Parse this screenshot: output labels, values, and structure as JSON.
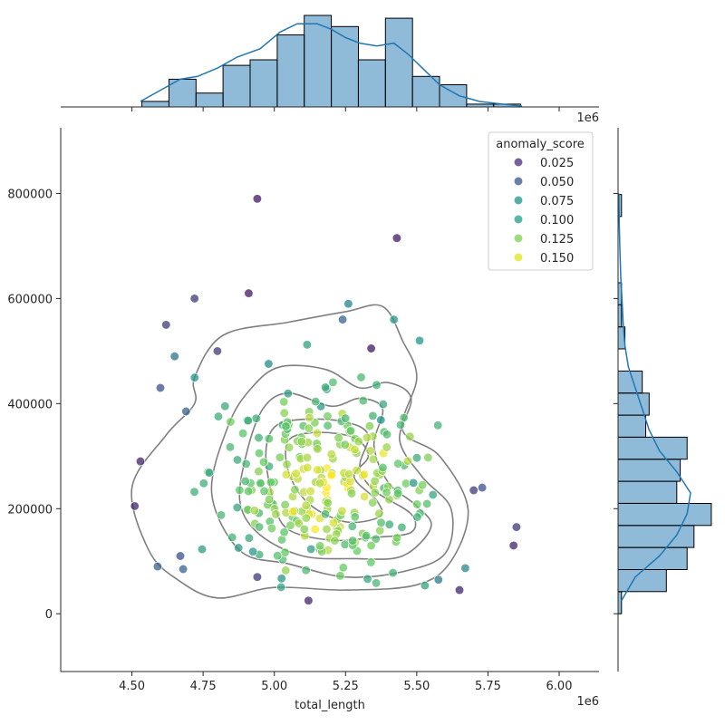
{
  "chart_data": {
    "type": "scatter",
    "title": "",
    "xlabel": "total_length",
    "ylabel": "",
    "x_offset_label": "1e6",
    "top_offset_label": "1e6",
    "xlim": [
      4.25,
      6.14
    ],
    "ylim": [
      -110000,
      925000
    ],
    "x_ticks": [
      4.5,
      4.75,
      5.0,
      5.25,
      5.5,
      5.75,
      6.0
    ],
    "x_tick_labels": [
      "4.50",
      "4.75",
      "5.00",
      "5.25",
      "5.50",
      "5.75",
      "6.00"
    ],
    "y_ticks": [
      0,
      200000,
      400000,
      600000,
      800000
    ],
    "y_tick_labels": [
      "0",
      "200000",
      "400000",
      "600000",
      "800000"
    ],
    "grid": false,
    "legend": {
      "title": "anomaly_score",
      "placement": "top-right",
      "entries": [
        {
          "label": "0.025",
          "color": "#472d7b"
        },
        {
          "label": "0.050",
          "color": "#3b528b"
        },
        {
          "label": "0.075",
          "color": "#21918c"
        },
        {
          "label": "0.100",
          "color": "#1fa187"
        },
        {
          "label": "0.125",
          "color": "#7ad151"
        },
        {
          "label": "0.150",
          "color": "#e2e418"
        }
      ]
    },
    "colormap": [
      "#440154",
      "#3b528b",
      "#21918c",
      "#5ec962",
      "#fde725"
    ],
    "point_color_range": [
      0.015,
      0.16
    ],
    "outlier_points": [
      {
        "x": 4.94,
        "y": 790000,
        "score": 0.025
      },
      {
        "x": 5.43,
        "y": 715000,
        "score": 0.025
      },
      {
        "x": 4.91,
        "y": 610000,
        "score": 0.025
      },
      {
        "x": 4.72,
        "y": 600000,
        "score": 0.04
      },
      {
        "x": 5.26,
        "y": 590000,
        "score": 0.08
      },
      {
        "x": 4.62,
        "y": 550000,
        "score": 0.04
      },
      {
        "x": 5.24,
        "y": 560000,
        "score": 0.06
      },
      {
        "x": 5.42,
        "y": 560000,
        "score": 0.09
      },
      {
        "x": 5.51,
        "y": 520000,
        "score": 0.09
      },
      {
        "x": 5.34,
        "y": 505000,
        "score": 0.025
      },
      {
        "x": 4.8,
        "y": 500000,
        "score": 0.04
      },
      {
        "x": 4.65,
        "y": 490000,
        "score": 0.07
      },
      {
        "x": 4.53,
        "y": 290000,
        "score": 0.03
      },
      {
        "x": 4.51,
        "y": 205000,
        "score": 0.03
      },
      {
        "x": 4.59,
        "y": 90000,
        "score": 0.06
      },
      {
        "x": 5.12,
        "y": 25000,
        "score": 0.03
      },
      {
        "x": 5.65,
        "y": 45000,
        "score": 0.03
      },
      {
        "x": 5.7,
        "y": 235000,
        "score": 0.04
      },
      {
        "x": 5.73,
        "y": 240000,
        "score": 0.05
      },
      {
        "x": 5.84,
        "y": 130000,
        "score": 0.03
      },
      {
        "x": 5.85,
        "y": 165000,
        "score": 0.04
      },
      {
        "x": 4.6,
        "y": 430000,
        "score": 0.05
      },
      {
        "x": 4.69,
        "y": 385000,
        "score": 0.06
      },
      {
        "x": 4.94,
        "y": 70000,
        "score": 0.04
      },
      {
        "x": 4.67,
        "y": 110000,
        "score": 0.05
      },
      {
        "x": 4.68,
        "y": 85000,
        "score": 0.06
      }
    ],
    "contour_levels": [
      [
        [
          4.8,
          30000
        ],
        [
          5.0,
          50000
        ],
        [
          5.25,
          45000
        ],
        [
          5.5,
          55000
        ],
        [
          5.62,
          100000
        ],
        [
          5.68,
          200000
        ],
        [
          5.58,
          300000
        ],
        [
          5.45,
          350000
        ],
        [
          5.5,
          450000
        ],
        [
          5.45,
          520000
        ],
        [
          5.38,
          585000
        ],
        [
          5.25,
          575000
        ],
        [
          5.05,
          555000
        ],
        [
          4.82,
          530000
        ],
        [
          4.72,
          450000
        ],
        [
          4.72,
          400000
        ],
        [
          4.62,
          340000
        ],
        [
          4.5,
          240000
        ],
        [
          4.56,
          120000
        ],
        [
          4.66,
          65000
        ]
      ],
      [
        [
          4.88,
          120000
        ],
        [
          5.05,
          95000
        ],
        [
          5.25,
          70000
        ],
        [
          5.45,
          80000
        ],
        [
          5.6,
          115000
        ],
        [
          5.62,
          200000
        ],
        [
          5.52,
          260000
        ],
        [
          5.44,
          330000
        ],
        [
          5.48,
          410000
        ],
        [
          5.4,
          440000
        ],
        [
          5.3,
          430000
        ],
        [
          5.18,
          465000
        ],
        [
          5.02,
          470000
        ],
        [
          4.92,
          430000
        ],
        [
          4.84,
          360000
        ],
        [
          4.78,
          230000
        ]
      ],
      [
        [
          4.95,
          150000
        ],
        [
          5.1,
          110000
        ],
        [
          5.28,
          105000
        ],
        [
          5.45,
          110000
        ],
        [
          5.55,
          165000
        ],
        [
          5.5,
          205000
        ],
        [
          5.4,
          250000
        ],
        [
          5.35,
          320000
        ],
        [
          5.38,
          390000
        ],
        [
          5.3,
          410000
        ],
        [
          5.2,
          395000
        ],
        [
          5.05,
          420000
        ],
        [
          4.96,
          390000
        ],
        [
          4.9,
          300000
        ],
        [
          4.88,
          210000
        ]
      ],
      [
        [
          5.05,
          160000
        ],
        [
          5.2,
          140000
        ],
        [
          5.35,
          145000
        ],
        [
          5.48,
          155000
        ],
        [
          5.48,
          190000
        ],
        [
          5.35,
          235000
        ],
        [
          5.3,
          280000
        ],
        [
          5.33,
          340000
        ],
        [
          5.25,
          365000
        ],
        [
          5.1,
          370000
        ],
        [
          5.0,
          355000
        ],
        [
          4.97,
          300000
        ],
        [
          5.0,
          210000
        ]
      ],
      [
        [
          5.12,
          210000
        ],
        [
          5.25,
          175000
        ],
        [
          5.37,
          185000
        ],
        [
          5.36,
          215000
        ],
        [
          5.28,
          260000
        ],
        [
          5.33,
          300000
        ],
        [
          5.28,
          335000
        ],
        [
          5.15,
          345000
        ],
        [
          5.05,
          330000
        ],
        [
          5.05,
          270000
        ]
      ]
    ],
    "contour_color": "#7f7f7f",
    "top_hist": {
      "bin_edges": [
        4.535,
        4.63,
        4.725,
        4.82,
        4.915,
        5.01,
        5.105,
        5.2,
        5.295,
        5.39,
        5.485,
        5.58,
        5.675,
        5.77,
        5.865
      ],
      "counts": [
        2,
        10,
        5,
        15,
        17,
        26,
        33,
        29,
        17,
        32,
        11,
        8,
        1,
        1
      ],
      "kde_x": [
        4.53,
        4.6,
        4.67,
        4.73,
        4.8,
        4.87,
        4.95,
        5.02,
        5.08,
        5.15,
        5.2,
        5.25,
        5.3,
        5.36,
        5.42,
        5.47,
        5.52,
        5.58,
        5.65,
        5.72,
        5.8,
        5.87
      ],
      "kde_y": [
        2,
        6,
        10,
        11,
        14,
        18,
        21,
        27,
        30,
        30,
        28,
        25,
        23,
        22,
        23,
        19,
        14,
        8,
        4,
        2,
        1,
        0.3
      ]
    },
    "right_hist": {
      "bin_edges": [
        0,
        42000,
        84000,
        126000,
        168000,
        210000,
        252000,
        294000,
        336000,
        378000,
        420000,
        462000,
        504000,
        546000,
        588000,
        630000,
        672000,
        714000,
        756000,
        798000
      ],
      "counts": [
        1,
        14,
        20,
        22,
        27,
        17,
        18,
        20,
        8,
        9,
        7,
        0,
        2,
        1,
        1,
        0,
        0,
        0,
        1
      ],
      "kde_y": [
        25000,
        70000,
        110000,
        150000,
        190000,
        230000,
        270000,
        310000,
        350000,
        390000,
        430000,
        470000,
        510000,
        550000,
        590000,
        640000,
        700000,
        760000,
        800000
      ],
      "kde_x": [
        1,
        5,
        12,
        17,
        20,
        21,
        17,
        12,
        9,
        7,
        5,
        3,
        2,
        1.5,
        1.2,
        0.8,
        0.5,
        0.3,
        0.2
      ]
    }
  }
}
